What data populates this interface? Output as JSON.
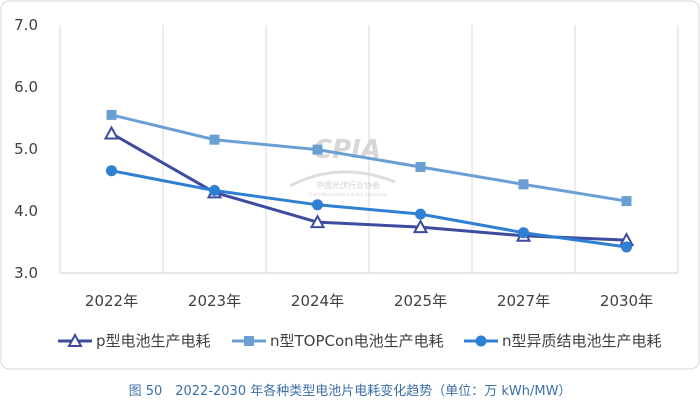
{
  "chart_data": {
    "type": "line",
    "categories": [
      "2022年",
      "2023年",
      "2024年",
      "2025年",
      "2027年",
      "2030年"
    ],
    "ylim": [
      3.0,
      7.0
    ],
    "yticks": [
      "3.0",
      "4.0",
      "5.0",
      "6.0",
      "7.0"
    ],
    "grid": "vertical",
    "legend_position": "bottom",
    "series": [
      {
        "name": "p型电池生产电耗",
        "values": [
          5.25,
          4.3,
          3.82,
          3.74,
          3.6,
          3.53
        ],
        "color": "#3d4c9e",
        "marker": "triangle"
      },
      {
        "name": "n型TOPCon电池生产电耗",
        "values": [
          5.55,
          5.15,
          4.99,
          4.71,
          4.43,
          4.16
        ],
        "color": "#6a9fd4",
        "marker": "square"
      },
      {
        "name": "n型异质结电池生产电耗",
        "values": [
          4.65,
          4.33,
          4.1,
          3.95,
          3.65,
          3.42
        ],
        "color": "#2f7fd3",
        "marker": "circle"
      }
    ]
  },
  "watermark": {
    "logo_text": "CPIA",
    "name_cn": "中国光伏行业协会",
    "name_en": "China Photovoltaic Industry Association"
  },
  "caption": "图 50　2022-2030 年各种类型电池片电耗变化趋势（单位：万 kWh/MW）"
}
